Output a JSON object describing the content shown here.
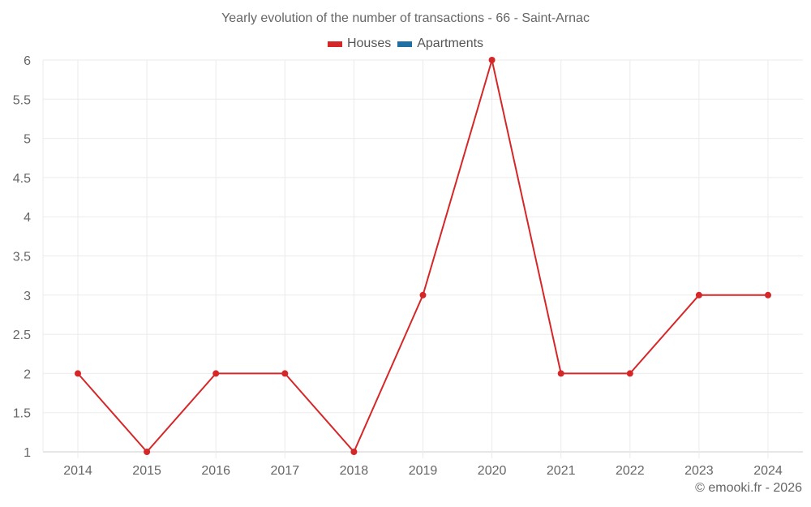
{
  "chart_data": {
    "type": "line",
    "title": "Yearly evolution of the number of transactions - 66 - Saint-Arnac",
    "xlabel": "",
    "ylabel": "",
    "categories": [
      "2014",
      "2015",
      "2016",
      "2017",
      "2018",
      "2019",
      "2020",
      "2021",
      "2022",
      "2023",
      "2024"
    ],
    "series": [
      {
        "name": "Houses",
        "color": "#d62728",
        "values": [
          2,
          1,
          2,
          2,
          1,
          3,
          6,
          2,
          2,
          3,
          3
        ]
      },
      {
        "name": "Apartments",
        "color": "#1f6fa3",
        "values": []
      }
    ],
    "ylim": [
      1,
      6
    ],
    "yticks": [
      "1",
      "1.5",
      "2",
      "2.5",
      "3",
      "3.5",
      "4",
      "4.5",
      "5",
      "5.5",
      "6"
    ],
    "grid": true,
    "legend_position": "top"
  },
  "legend": [
    {
      "label": "Houses",
      "color": "#d62728"
    },
    {
      "label": "Apartments",
      "color": "#1f6fa3"
    }
  ],
  "credit": "© emooki.fr - 2026"
}
